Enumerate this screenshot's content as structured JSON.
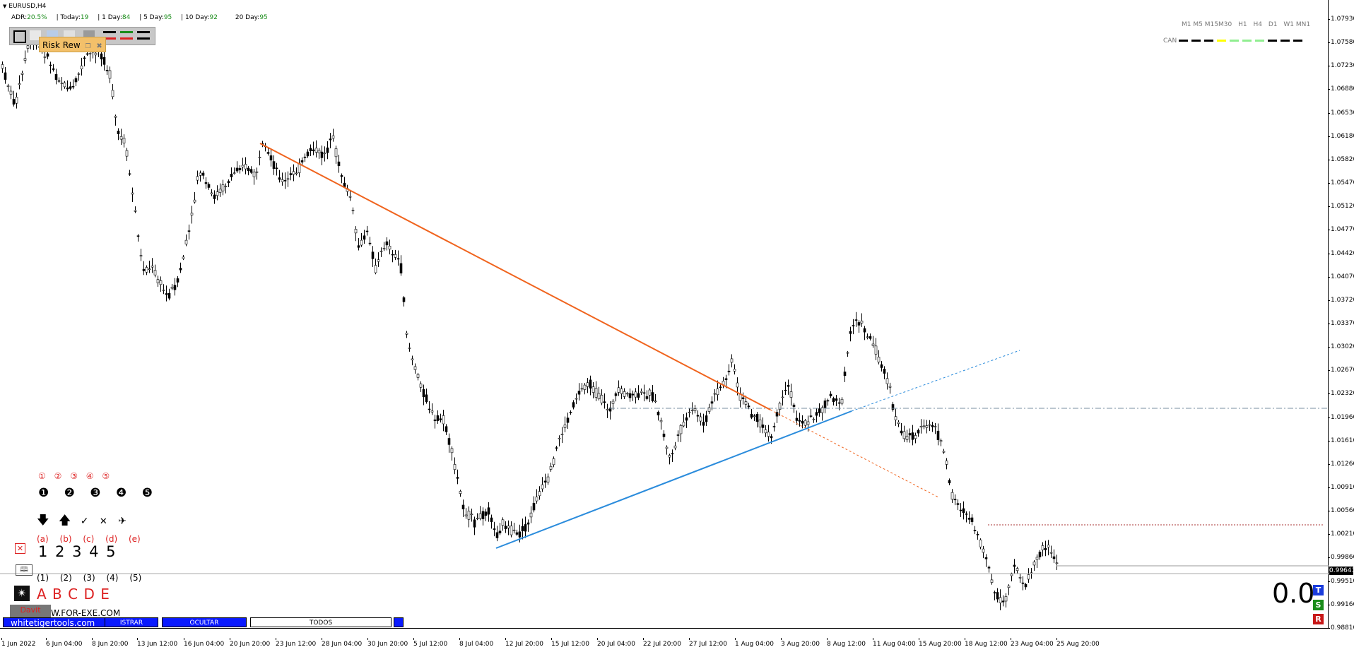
{
  "window": {
    "symbol_title": "EURUSD,H4"
  },
  "stats": {
    "adr_label": "ADR:",
    "adr_value": "20.5%",
    "today_label": "| Today:",
    "today_value": "19",
    "day1_label": "| 1 Day:",
    "day1_value": "84",
    "day5_label": "| 5 Day:",
    "day5_value": "95",
    "day10_label": "| 10 Day:",
    "day10_value": "92",
    "day20_label": "20 Day:",
    "day20_value": "95"
  },
  "toolbar": {
    "risk_label": "Risk Rew"
  },
  "timeframes": {
    "labels": [
      "M1",
      "M5",
      "M15",
      "M30",
      "H1",
      "H4",
      "D1",
      "W1",
      "MN1"
    ],
    "can_label": "CAN",
    "dash_colors": [
      "#000000",
      "#000000",
      "#000000",
      "#ffff00",
      "#90ee90",
      "#90ee90",
      "#90ee90",
      "#000000",
      "#000000",
      "#000000"
    ]
  },
  "price_axis": {
    "ticks": [
      "1.07930",
      "1.07580",
      "1.07230",
      "1.06880",
      "1.06530",
      "1.06180",
      "1.05820",
      "1.05470",
      "1.05120",
      "1.04770",
      "1.04420",
      "1.04070",
      "1.03720",
      "1.03370",
      "1.03020",
      "1.02670",
      "1.02320",
      "1.01960",
      "1.01610",
      "1.01260",
      "1.00910",
      "1.00560",
      "1.00210",
      "0.99860",
      "0.99510",
      "0.99160",
      "0.98810"
    ],
    "current_price": "0.99641"
  },
  "time_axis": {
    "ticks": [
      "1 Jun 2022",
      "6 Jun 04:00",
      "8 Jun 20:00",
      "13 Jun 12:00",
      "16 Jun 04:00",
      "20 Jun 20:00",
      "23 Jun 12:00",
      "28 Jun 04:00",
      "30 Jun 20:00",
      "5 Jul 12:00",
      "8 Jul 04:00",
      "12 Jul 20:00",
      "15 Jul 12:00",
      "20 Jul 04:00",
      "22 Jul 20:00",
      "27 Jul 12:00",
      "1 Aug 04:00",
      "3 Aug 20:00",
      "8 Aug 12:00",
      "11 Aug 04:00",
      "15 Aug 20:00",
      "18 Aug 12:00",
      "23 Aug 04:00",
      "25 Aug 20:00"
    ]
  },
  "wave_labels": {
    "red_circled": [
      "①",
      "②",
      "③",
      "④",
      "⑤"
    ],
    "black_circled": [
      "❶",
      "❷",
      "❸",
      "❹",
      "❺"
    ],
    "arrows": [
      "🡇",
      "🡅",
      "✓",
      "✕",
      "✈"
    ],
    "letters_paren": [
      "(a)",
      "(b)",
      "(c)",
      "(d)",
      "(e)"
    ],
    "digits": "1 2 3 4 5",
    "numbers_paren": [
      "(1)",
      "(2)",
      "(3)",
      "(4)",
      "(5)"
    ],
    "letters": "A B C D E"
  },
  "bottom_buttons": {
    "site": "whitetigertools.com",
    "mostrar": "ISTRAR",
    "ocultar": "OCULTAR",
    "todos": "TODOS",
    "davit": "Davit",
    "forex": "W.FOR-EXE.COM"
  },
  "pnl": {
    "value": "0.0",
    "t": "T",
    "s": "S",
    "r": "R"
  },
  "colors": {
    "downtrend": "#f0641e",
    "uptrend": "#2b8cdc",
    "bg": "#ffffff",
    "candle": "#000000"
  }
}
